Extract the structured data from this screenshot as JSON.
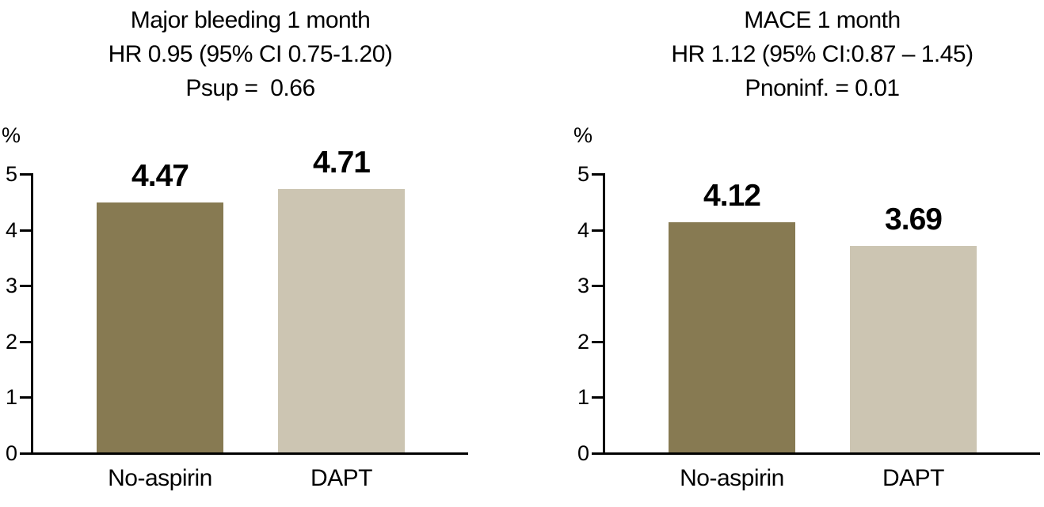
{
  "page": {
    "background": "#ffffff",
    "text_color": "#000000",
    "axis_color": "#000000"
  },
  "chart_data": [
    {
      "type": "bar",
      "title": "Major bleeding 1 month",
      "subtitle": "HR 0.95 (95% CI 0.75-1.20)",
      "p_value_line": "Psup =  0.66",
      "ylabel": "%",
      "xlabel": "",
      "categories": [
        "No-aspirin",
        "DAPT"
      ],
      "values": [
        4.47,
        4.71
      ],
      "value_labels": [
        "4.47",
        "4.71"
      ],
      "bar_colors": [
        "#877a52",
        "#ccc5b2"
      ],
      "ylim": [
        0,
        5
      ],
      "yticks": [
        0,
        1,
        2,
        3,
        4,
        5
      ],
      "grid": false,
      "legend_position": "none"
    },
    {
      "type": "bar",
      "title": "MACE 1 month",
      "subtitle": "HR 1.12 (95% CI:0.87 – 1.45)",
      "p_value_line": "Pnoninf. = 0.01",
      "ylabel": "%",
      "xlabel": "",
      "categories": [
        "No-aspirin",
        "DAPT"
      ],
      "values": [
        4.12,
        3.69
      ],
      "value_labels": [
        "4.12",
        "3.69"
      ],
      "bar_colors": [
        "#877a52",
        "#ccc5b2"
      ],
      "ylim": [
        0,
        5
      ],
      "yticks": [
        0,
        1,
        2,
        3,
        4,
        5
      ],
      "grid": false,
      "legend_position": "none"
    }
  ]
}
